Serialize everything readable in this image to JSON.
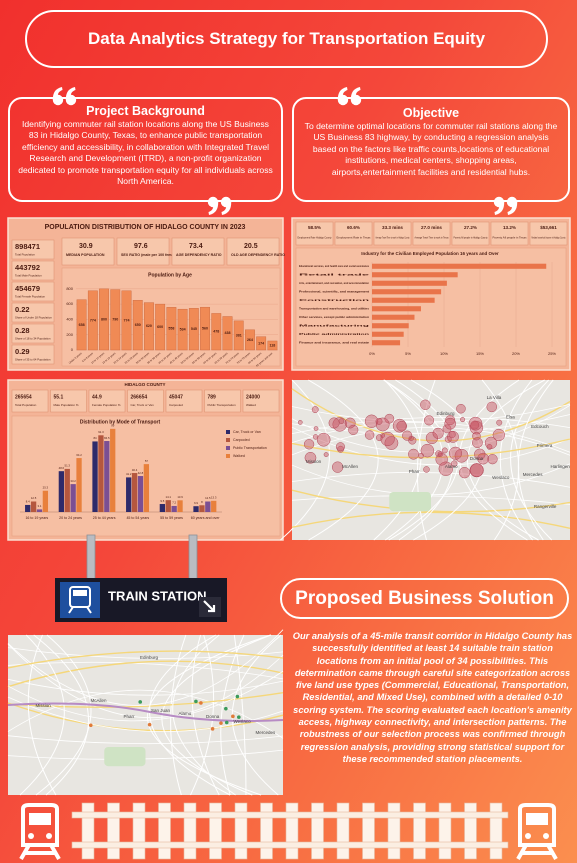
{
  "header": {
    "title": "Data Analytics Strategy for Transportation Equity"
  },
  "background": {
    "heading": "Project Background",
    "text": "Identifying commuter rail station locations along the US Business 83 in Hidalgo County, Texas, to enhance public transportation efficiency and accessibility, in collaboration with Integrated Travel Research and Development (ITRD), a non-profit organization dedicated to promote transportation equity for all individuals across North America."
  },
  "objective": {
    "heading": "Objective",
    "text": "To determine optimal locations for commuter rail stations along the US Business 83 highway, by conducting a regression analysis based on the factors like traffic counts,locations of educational institutions, medical centers, shopping areas, airports,entertainment facilities and residential hubs."
  },
  "population_panel": {
    "title": "POPULATION DISTRIBUTION OF HIDALGO COUNTY IN 2023",
    "stats": [
      {
        "value": 898471,
        "label": "Total Population"
      },
      {
        "value": 443792,
        "label": "Total Male Population"
      },
      {
        "value": 454679,
        "label": "Total Female Population"
      },
      {
        "value": 0.22,
        "label": "Share of Under 18 Population"
      },
      {
        "value": 0.28,
        "label": "Share of 18 to 34 Population"
      },
      {
        "value": 0.29,
        "label": "Share of 35 to 64 Population"
      }
    ],
    "kpis": [
      {
        "value": 30.9,
        "label": "MEDIAN POPULATION"
      },
      {
        "value": 97.6,
        "label": "SEX RATIO (male per 100 females)"
      },
      {
        "value": 73.4,
        "label": "AGE DEPENDENCY RATIO"
      },
      {
        "value": 20.5,
        "label": "OLD AGE DEPENDENCY RATIO"
      }
    ]
  },
  "employment_panel": {
    "kpis": [
      {
        "value": "58.5%",
        "label": "Employment Rate Hidalgo County"
      },
      {
        "value": "60.6%",
        "label": "Employment Rate in Texas"
      },
      {
        "value": "33.3 mins",
        "label": "Average Travel Time to work in Hidalgo County"
      },
      {
        "value": "27.0 mins",
        "label": "Average Travel Time to work in Texas"
      },
      {
        "value": "27.2%",
        "label": "Poverty All people in Hidalgo County"
      },
      {
        "value": "13.2%",
        "label": "Poverty All people in Texas"
      },
      {
        "value": "$53,661",
        "label": "Median household income in Hidalgo County"
      }
    ]
  },
  "transport_panel": {
    "title": "HIDALGO COUNTY",
    "stats": [
      {
        "value": 265654,
        "label": "Total Population"
      },
      {
        "value": 55.1,
        "label": "Male Population %"
      },
      {
        "value": 44.9,
        "label": "Female Population %"
      },
      {
        "value": 266654,
        "label": "Car, Truck or Van"
      },
      {
        "value": 45047,
        "label": "Carpooled"
      },
      {
        "value": 789,
        "label": "Public Transportation"
      },
      {
        "value": 24000,
        "label": "Walked"
      }
    ]
  },
  "chart_data": [
    {
      "type": "bar",
      "title": "Population by Age",
      "categories": [
        "Under 5 years",
        "5 to 9 years",
        "10 to 14 years",
        "15 to 19 years",
        "20 to 24 years",
        "25 to 29 years",
        "30 to 34 years",
        "35 to 39 years",
        "40 to 44 years",
        "45 to 49 years",
        "50 to 54 years",
        "55 to 59 years",
        "60 to 64 years",
        "65 to 69 years",
        "70 to 74 years",
        "75 to 79 years",
        "80 to 84 years",
        "85 years and over"
      ],
      "values": [
        658,
        774,
        800,
        790,
        774,
        650,
        620,
        600,
        558,
        534,
        545,
        560,
        478,
        438,
        381,
        264,
        174,
        118
      ],
      "color": "#f08a55",
      "ylim": [
        0,
        850
      ],
      "yticks": [
        0,
        200,
        400,
        600,
        800
      ]
    },
    {
      "type": "hbar",
      "title": "Industry for the Civilian Employed Population 16 years and Over",
      "categories": [
        "Educational services, and health care and social assistance",
        "Retail trade",
        "Arts, entertainment, and recreation, and accommodation",
        "Professional, scientific, and management",
        "Construction",
        "Transportation and warehousing, and utilities",
        "Other services, except public administration",
        "Manufacturing",
        "Public administration",
        "Finance and insurance, and real estate"
      ],
      "values": [
        24.2,
        11.9,
        10.4,
        9.6,
        8.7,
        6.8,
        5.9,
        5.1,
        4.4,
        3.9
      ],
      "color": "#e9744a",
      "xlim": [
        0,
        25
      ],
      "xticks": [
        {
          "value": 0,
          "label": "0%"
        },
        {
          "value": 5,
          "label": "5%"
        },
        {
          "value": 10,
          "label": "10%"
        },
        {
          "value": 15,
          "label": "15%"
        },
        {
          "value": 20,
          "label": "20%"
        },
        {
          "value": 25,
          "label": "25%"
        }
      ]
    },
    {
      "type": "grouped-bar",
      "title": "Distribution by Mode of Transport",
      "categories": [
        "16 to 19 years",
        "20 to 24 years",
        "25 to 44 years",
        "45 to 54 years",
        "55 to 59 years",
        "60 years and over"
      ],
      "series": [
        {
          "name": "Car, Truck or Van",
          "color": "#2e2a6a",
          "values": [
            8.4,
            48.6,
            84.0,
            41.2,
            9.5,
            6.9
          ]
        },
        {
          "name": "Carpooled",
          "color": "#b5573e",
          "values": [
            12.5,
            51.3,
            91.3,
            46.4,
            14.1,
            8.0
          ]
        },
        {
          "name": "Public Transportation",
          "color": "#7b4f93",
          "values": [
            3.1,
            33.2,
            84.5,
            42.8,
            7.2,
            12.5
          ]
        },
        {
          "name": "Walked",
          "color": "#e8803c",
          "values": [
            25.3,
            64.2,
            99.0,
            57.0,
            13.9,
            13.3
          ]
        }
      ],
      "ylim": [
        0,
        100
      ],
      "legend": "right"
    }
  ],
  "map_top": {
    "labels": [
      "Edinburg",
      "La Villa",
      "Elsa",
      "Edcouch",
      "Mission",
      "McAllen",
      "Pharr",
      "Alamo",
      "Donna",
      "Weslaco",
      "Mercedes",
      "Harlingen",
      "Primera",
      "Rangerville"
    ]
  },
  "map_bottom": {
    "labels": [
      "Edinburg",
      "Mission",
      "McAllen",
      "Pharr",
      "San Juan",
      "Alamo",
      "Donna",
      "Weslaco",
      "Mercedes"
    ]
  },
  "sign": {
    "text": "TRAIN STATION"
  },
  "solution": {
    "heading": "Proposed Business Solution",
    "text": "Our analysis of a 45-mile transit corridor in Hidalgo County has successfully identified at least 14 suitable train station locations from an initial pool of 34 possibilities. This determination came through careful site categorization across five land use types (Commercial, Educational, Transportation, Residential, and Mixed Use), combined with a detailed 0-10 scoring system. The scoring evaluated each location's amenity access, highway connectivity, and intersection patterns. The robustness of our selection process was confirmed through regression analysis, providing strong statistical support for these recommended station placements."
  }
}
